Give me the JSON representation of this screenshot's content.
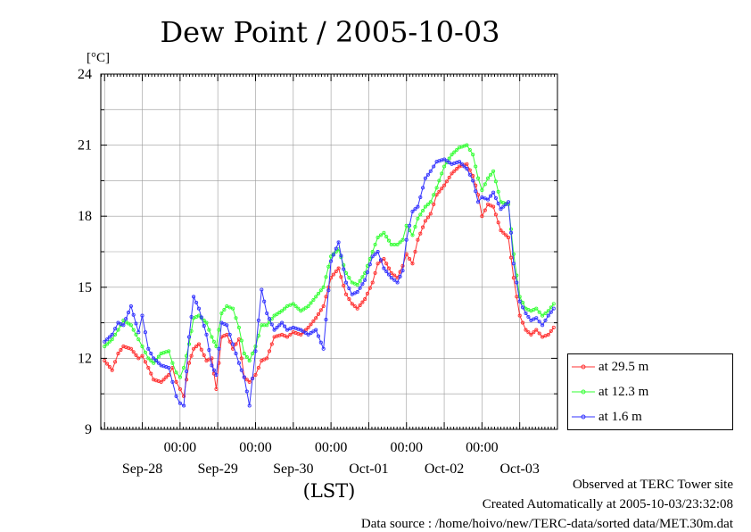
{
  "colors": {
    "s1": "#ff3030",
    "s2": "#33ff33",
    "s3": "#3333ff",
    "grid": "#9a9a9a"
  },
  "footer": {
    "observed": "Observed at TERC Tower site",
    "created": "Created Automatically at 2005-10-03/23:32:08",
    "source": "Data source : /home/hoivo/new/TERC-data/sorted data/MET.30m.dat"
  },
  "chart_data": {
    "type": "line",
    "title": "Dew Point / 2005-10-03",
    "ylabel": "[°C]",
    "xlabel": "(LST)",
    "ylim": [
      9,
      24
    ],
    "yticks": [
      9,
      12,
      15,
      18,
      21,
      24
    ],
    "xlim": [
      -1.05,
      5.0
    ],
    "time_tick_label": "00:00",
    "time_ticks": [
      0,
      1,
      2,
      3,
      4
    ],
    "date_labels": [
      "Sep-28",
      "Sep-29",
      "Sep-30",
      "Oct-01",
      "Oct-02",
      "Oct-03"
    ],
    "date_label_positions": [
      -0.5,
      0.5,
      1.5,
      2.5,
      3.5,
      4.5
    ],
    "grid": true,
    "legend_position": "right",
    "x_unit": "days from 2005-09-29 00:00",
    "series": [
      {
        "name": "at 29.5 m",
        "color": "#ff3030",
        "x": [
          -1.0,
          -0.9,
          -0.82,
          -0.75,
          -0.65,
          -0.55,
          -0.5,
          -0.42,
          -0.35,
          -0.25,
          -0.15,
          -0.1,
          -0.05,
          0.0,
          0.05,
          0.12,
          0.18,
          0.25,
          0.35,
          0.42,
          0.48,
          0.55,
          0.62,
          0.7,
          0.78,
          0.85,
          0.92,
          1.0,
          1.08,
          1.15,
          1.25,
          1.35,
          1.42,
          1.5,
          1.6,
          1.7,
          1.8,
          1.9,
          2.0,
          2.1,
          2.2,
          2.28,
          2.35,
          2.45,
          2.55,
          2.62,
          2.7,
          2.8,
          2.88,
          2.95,
          3.0,
          3.08,
          3.15,
          3.25,
          3.32,
          3.4,
          3.5,
          3.6,
          3.7,
          3.8,
          3.88,
          3.95,
          4.0,
          4.08,
          4.15,
          4.25,
          4.35,
          4.42,
          4.5,
          4.58,
          4.65,
          4.72,
          4.8,
          4.88,
          4.95
        ],
        "values": [
          11.9,
          11.5,
          12.2,
          12.5,
          12.4,
          12.0,
          12.1,
          11.6,
          11.1,
          11.0,
          11.3,
          11.6,
          11.0,
          10.7,
          10.4,
          11.8,
          12.4,
          12.6,
          11.9,
          12.0,
          10.7,
          12.9,
          13.0,
          12.4,
          12.8,
          11.2,
          11.0,
          11.3,
          11.9,
          12.0,
          12.9,
          13.0,
          12.9,
          13.1,
          13.0,
          13.3,
          13.7,
          14.2,
          15.4,
          15.8,
          14.7,
          14.3,
          14.1,
          14.5,
          15.2,
          16.0,
          16.2,
          15.6,
          15.4,
          15.9,
          16.4,
          16.0,
          17.0,
          17.8,
          18.1,
          18.9,
          19.3,
          19.8,
          20.1,
          20.2,
          19.7,
          18.9,
          18.0,
          18.5,
          18.4,
          17.4,
          17.1,
          15.4,
          13.8,
          13.2,
          13.0,
          13.2,
          12.9,
          13.0,
          13.3
        ]
      },
      {
        "name": "at 12.3 m",
        "color": "#33ff33",
        "x": [
          -1.0,
          -0.9,
          -0.82,
          -0.75,
          -0.65,
          -0.55,
          -0.5,
          -0.42,
          -0.35,
          -0.25,
          -0.15,
          -0.1,
          -0.05,
          0.0,
          0.05,
          0.12,
          0.18,
          0.25,
          0.35,
          0.42,
          0.48,
          0.55,
          0.62,
          0.7,
          0.78,
          0.85,
          0.92,
          1.0,
          1.08,
          1.15,
          1.25,
          1.35,
          1.42,
          1.5,
          1.6,
          1.7,
          1.8,
          1.9,
          2.0,
          2.1,
          2.2,
          2.28,
          2.35,
          2.45,
          2.55,
          2.62,
          2.7,
          2.8,
          2.88,
          2.95,
          3.0,
          3.08,
          3.15,
          3.25,
          3.32,
          3.4,
          3.5,
          3.6,
          3.7,
          3.8,
          3.88,
          3.95,
          4.0,
          4.08,
          4.15,
          4.25,
          4.35,
          4.42,
          4.5,
          4.58,
          4.65,
          4.72,
          4.8,
          4.88,
          4.95
        ],
        "values": [
          12.5,
          12.8,
          13.2,
          13.6,
          13.4,
          12.8,
          12.5,
          12.0,
          11.8,
          12.2,
          12.3,
          11.8,
          11.4,
          11.2,
          11.6,
          12.6,
          13.7,
          13.8,
          13.5,
          12.9,
          12.5,
          13.9,
          14.2,
          14.1,
          13.3,
          12.2,
          11.9,
          12.5,
          13.4,
          13.4,
          13.8,
          14.0,
          14.2,
          14.3,
          14.0,
          14.2,
          14.6,
          15.0,
          16.3,
          16.6,
          15.6,
          15.2,
          15.1,
          15.6,
          16.5,
          17.1,
          17.3,
          16.8,
          16.8,
          17.0,
          17.6,
          17.2,
          17.9,
          18.4,
          18.6,
          19.2,
          20.1,
          20.6,
          20.9,
          21.0,
          20.6,
          19.6,
          19.1,
          19.6,
          19.9,
          18.6,
          18.5,
          16.4,
          14.6,
          14.1,
          14.0,
          14.1,
          13.8,
          14.0,
          14.3
        ]
      },
      {
        "name": "at 1.6 m",
        "color": "#3333ff",
        "x": [
          -1.0,
          -0.9,
          -0.82,
          -0.75,
          -0.65,
          -0.55,
          -0.5,
          -0.42,
          -0.35,
          -0.25,
          -0.15,
          -0.1,
          -0.05,
          0.0,
          0.05,
          0.12,
          0.18,
          0.25,
          0.35,
          0.42,
          0.48,
          0.55,
          0.62,
          0.7,
          0.78,
          0.85,
          0.92,
          1.0,
          1.08,
          1.15,
          1.25,
          1.35,
          1.42,
          1.5,
          1.6,
          1.7,
          1.8,
          1.9,
          2.0,
          2.1,
          2.2,
          2.28,
          2.35,
          2.45,
          2.55,
          2.62,
          2.7,
          2.8,
          2.88,
          2.95,
          3.0,
          3.08,
          3.15,
          3.25,
          3.32,
          3.4,
          3.5,
          3.6,
          3.7,
          3.8,
          3.88,
          3.95,
          4.0,
          4.08,
          4.15,
          4.25,
          4.35,
          4.42,
          4.5,
          4.58,
          4.65,
          4.72,
          4.8,
          4.88,
          4.95
        ],
        "values": [
          12.7,
          13.0,
          13.5,
          13.4,
          14.2,
          13.1,
          13.8,
          12.4,
          12.0,
          11.7,
          11.6,
          11.0,
          10.4,
          10.1,
          10.0,
          12.9,
          14.6,
          14.1,
          13.0,
          11.7,
          11.3,
          13.5,
          13.4,
          12.6,
          11.8,
          11.2,
          10.0,
          12.3,
          14.9,
          13.9,
          13.2,
          13.5,
          13.2,
          13.3,
          13.2,
          13.0,
          13.2,
          12.4,
          16.1,
          16.9,
          15.2,
          14.7,
          14.8,
          15.3,
          16.3,
          16.5,
          15.8,
          15.4,
          15.2,
          15.7,
          17.0,
          18.2,
          18.4,
          19.6,
          19.9,
          20.3,
          20.4,
          20.2,
          20.3,
          20.0,
          19.5,
          18.6,
          18.8,
          18.7,
          19.0,
          18.3,
          18.6,
          16.0,
          14.4,
          13.9,
          13.6,
          13.7,
          13.4,
          13.8,
          14.1
        ]
      }
    ]
  }
}
